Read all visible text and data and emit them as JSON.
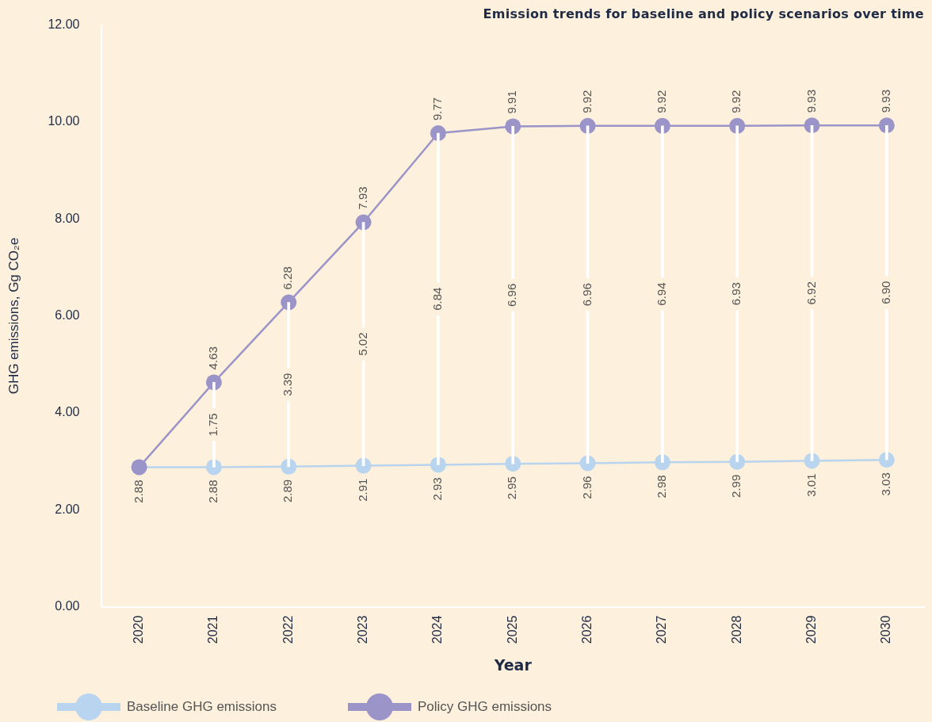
{
  "chart_data": {
    "type": "line",
    "title": "Emission trends for baseline and policy scenarios over time",
    "xlabel": "Year",
    "ylabel": "GHG emissions, Gg CO₂e",
    "categories": [
      "2020",
      "2021",
      "2022",
      "2023",
      "2024",
      "2025",
      "2026",
      "2027",
      "2028",
      "2029",
      "2030"
    ],
    "series": [
      {
        "name": "Baseline GHG emissions",
        "color": "#b8d4ee",
        "values": [
          2.88,
          2.88,
          2.89,
          2.91,
          2.93,
          2.95,
          2.96,
          2.98,
          2.99,
          3.01,
          3.03
        ],
        "value_labels": [
          "2.88",
          "2.88",
          "2.89",
          "2.91",
          "2.93",
          "2.95",
          "2.96",
          "2.98",
          "2.99",
          "3.01",
          "3.03"
        ]
      },
      {
        "name": "Policy GHG emissions",
        "color": "#9b94c8",
        "values": [
          2.88,
          4.63,
          6.28,
          7.93,
          9.77,
          9.91,
          9.92,
          9.92,
          9.92,
          9.93,
          9.93
        ],
        "value_labels": [
          null,
          "4.63",
          "6.28",
          "7.93",
          "9.77",
          "9.91",
          "9.92",
          "9.92",
          "9.92",
          "9.93",
          "9.93"
        ]
      },
      {
        "type": "bar",
        "color": "#ffffff",
        "base": [
          null,
          2.88,
          2.89,
          2.91,
          2.93,
          2.95,
          2.96,
          2.98,
          2.99,
          3.01,
          3.03
        ],
        "values": [
          null,
          1.75,
          3.39,
          5.02,
          6.84,
          6.96,
          6.96,
          6.94,
          6.93,
          6.92,
          6.9
        ],
        "value_labels": [
          null,
          "1.75",
          "3.39",
          "5.02",
          "6.84",
          "6.96",
          "6.96",
          "6.94",
          "6.93",
          "6.92",
          "6.90"
        ]
      }
    ],
    "ylim": [
      0,
      12
    ],
    "yticks": [
      {
        "value": 0,
        "label": "0.00"
      },
      {
        "value": 2,
        "label": "2.00"
      },
      {
        "value": 4,
        "label": "4.00"
      },
      {
        "value": 6,
        "label": "6.00"
      },
      {
        "value": 8,
        "label": "8.00"
      },
      {
        "value": 10,
        "label": "10.00"
      },
      {
        "value": 12,
        "label": "12.00"
      }
    ],
    "grid": false,
    "legend": "bottom left",
    "marker": "circle",
    "line_style": "solid"
  }
}
